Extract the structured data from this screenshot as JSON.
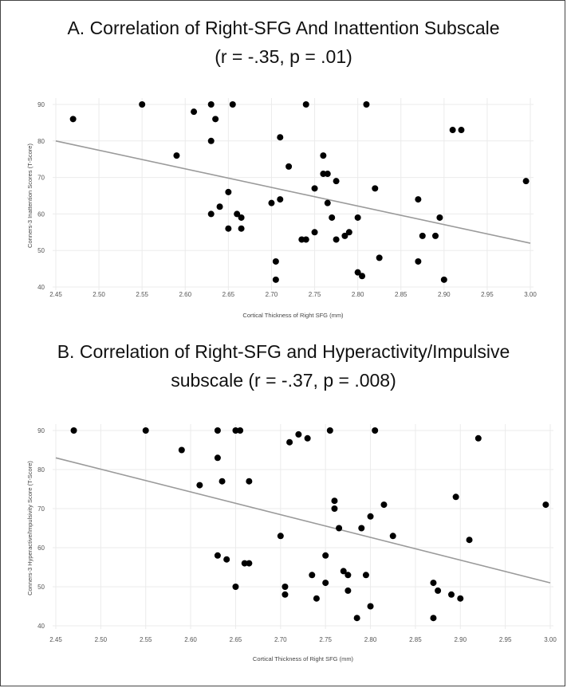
{
  "chart_data": [
    {
      "type": "scatter",
      "title_line1": "A. Correlation of Right-SFG And Inattention Subscale",
      "title_line2": "(r = -.35, p = .01)",
      "xlabel": "Cortical Thickness of Right SFG (mm)",
      "ylabel": "Conners-3 Inattention Scores (T-Score)",
      "xlim": [
        2.45,
        3.0
      ],
      "ylim": [
        40,
        90
      ],
      "xticks": [
        "2.45",
        "2.50",
        "2.55",
        "2.60",
        "2.65",
        "2.70",
        "2.75",
        "2.80",
        "2.85",
        "2.90",
        "2.95",
        "3.00"
      ],
      "yticks": [
        "40",
        "50",
        "60",
        "70",
        "80",
        "90"
      ],
      "regression": {
        "x": [
          2.45,
          3.0
        ],
        "y": [
          80,
          52
        ]
      },
      "points": [
        [
          2.47,
          86
        ],
        [
          2.55,
          90
        ],
        [
          2.59,
          76
        ],
        [
          2.61,
          88
        ],
        [
          2.63,
          90
        ],
        [
          2.63,
          80
        ],
        [
          2.635,
          86
        ],
        [
          2.655,
          90
        ],
        [
          2.63,
          60
        ],
        [
          2.64,
          62
        ],
        [
          2.65,
          66
        ],
        [
          2.65,
          56
        ],
        [
          2.66,
          60
        ],
        [
          2.665,
          59
        ],
        [
          2.665,
          56
        ],
        [
          2.7,
          63
        ],
        [
          2.705,
          42
        ],
        [
          2.705,
          47
        ],
        [
          2.71,
          81
        ],
        [
          2.71,
          64
        ],
        [
          2.72,
          73
        ],
        [
          2.735,
          53
        ],
        [
          2.74,
          53
        ],
        [
          2.74,
          90
        ],
        [
          2.75,
          55
        ],
        [
          2.75,
          67
        ],
        [
          2.76,
          76
        ],
        [
          2.76,
          71
        ],
        [
          2.765,
          71
        ],
        [
          2.765,
          63
        ],
        [
          2.77,
          59
        ],
        [
          2.775,
          53
        ],
        [
          2.775,
          69
        ],
        [
          2.785,
          54
        ],
        [
          2.79,
          55
        ],
        [
          2.8,
          59
        ],
        [
          2.8,
          44
        ],
        [
          2.805,
          43
        ],
        [
          2.81,
          90
        ],
        [
          2.82,
          67
        ],
        [
          2.825,
          48
        ],
        [
          2.87,
          64
        ],
        [
          2.87,
          47
        ],
        [
          2.875,
          54
        ],
        [
          2.89,
          54
        ],
        [
          2.895,
          59
        ],
        [
          2.9,
          42
        ],
        [
          2.91,
          83
        ],
        [
          2.92,
          83
        ],
        [
          2.995,
          69
        ]
      ]
    },
    {
      "type": "scatter",
      "title_line1": "B. Correlation of Right-SFG and Hyperactivity/Impulsive",
      "title_line2": "subscale (r = -.37, p = .008)",
      "xlabel": "Cortical Thickness of Right SFG (mm)",
      "ylabel": "Conners-3 Hyperactive/Impulsivity Score (T-Score)",
      "xlim": [
        2.45,
        3.0
      ],
      "ylim": [
        40,
        90
      ],
      "xticks": [
        "2.45",
        "2.50",
        "2.55",
        "2.60",
        "2.65",
        "2.70",
        "2.75",
        "2.80",
        "2.85",
        "2.90",
        "2.95",
        "3.00"
      ],
      "yticks": [
        "40",
        "50",
        "60",
        "70",
        "80",
        "90"
      ],
      "regression": {
        "x": [
          2.45,
          3.0
        ],
        "y": [
          83,
          51
        ]
      },
      "points": [
        [
          2.47,
          90
        ],
        [
          2.55,
          90
        ],
        [
          2.59,
          85
        ],
        [
          2.61,
          76
        ],
        [
          2.63,
          83
        ],
        [
          2.63,
          90
        ],
        [
          2.635,
          77
        ],
        [
          2.65,
          90
        ],
        [
          2.655,
          90
        ],
        [
          2.665,
          77
        ],
        [
          2.63,
          58
        ],
        [
          2.64,
          57
        ],
        [
          2.65,
          50
        ],
        [
          2.66,
          56
        ],
        [
          2.665,
          56
        ],
        [
          2.7,
          63
        ],
        [
          2.705,
          48
        ],
        [
          2.705,
          50
        ],
        [
          2.71,
          87
        ],
        [
          2.72,
          89
        ],
        [
          2.73,
          88
        ],
        [
          2.735,
          53
        ],
        [
          2.74,
          47
        ],
        [
          2.75,
          51
        ],
        [
          2.75,
          58
        ],
        [
          2.755,
          90
        ],
        [
          2.76,
          70
        ],
        [
          2.76,
          72
        ],
        [
          2.765,
          65
        ],
        [
          2.77,
          54
        ],
        [
          2.775,
          53
        ],
        [
          2.775,
          49
        ],
        [
          2.785,
          42
        ],
        [
          2.79,
          65
        ],
        [
          2.795,
          53
        ],
        [
          2.8,
          45
        ],
        [
          2.8,
          68
        ],
        [
          2.805,
          90
        ],
        [
          2.815,
          71
        ],
        [
          2.825,
          63
        ],
        [
          2.87,
          51
        ],
        [
          2.875,
          49
        ],
        [
          2.87,
          42
        ],
        [
          2.89,
          48
        ],
        [
          2.895,
          73
        ],
        [
          2.9,
          47
        ],
        [
          2.91,
          62
        ],
        [
          2.92,
          88
        ],
        [
          2.995,
          71
        ]
      ]
    }
  ]
}
